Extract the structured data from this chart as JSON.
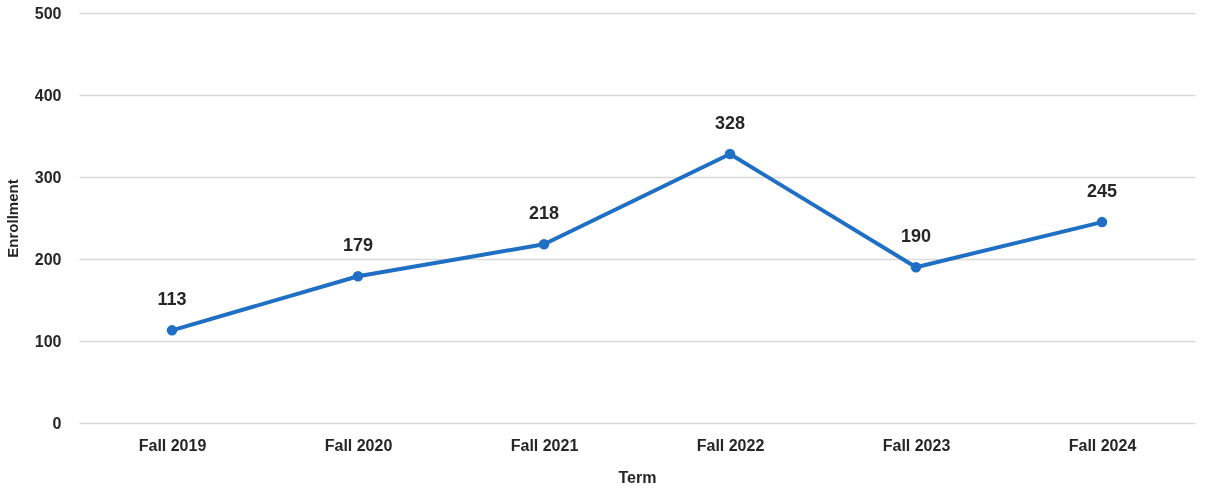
{
  "chart_data": {
    "type": "line",
    "xlabel": "Term",
    "ylabel": "Enrollment",
    "categories": [
      "Fall 2019",
      "Fall 2020",
      "Fall 2021",
      "Fall 2022",
      "Fall 2023",
      "Fall 2024"
    ],
    "series": [
      {
        "color": "#1f6fc4",
        "values": [
          113,
          179,
          218,
          328,
          190,
          245
        ]
      }
    ],
    "ylim": [
      0,
      500
    ],
    "yticks": [
      0,
      100,
      200,
      300,
      400,
      500
    ],
    "grid": "y",
    "marker": "circle",
    "data_labels": true
  }
}
